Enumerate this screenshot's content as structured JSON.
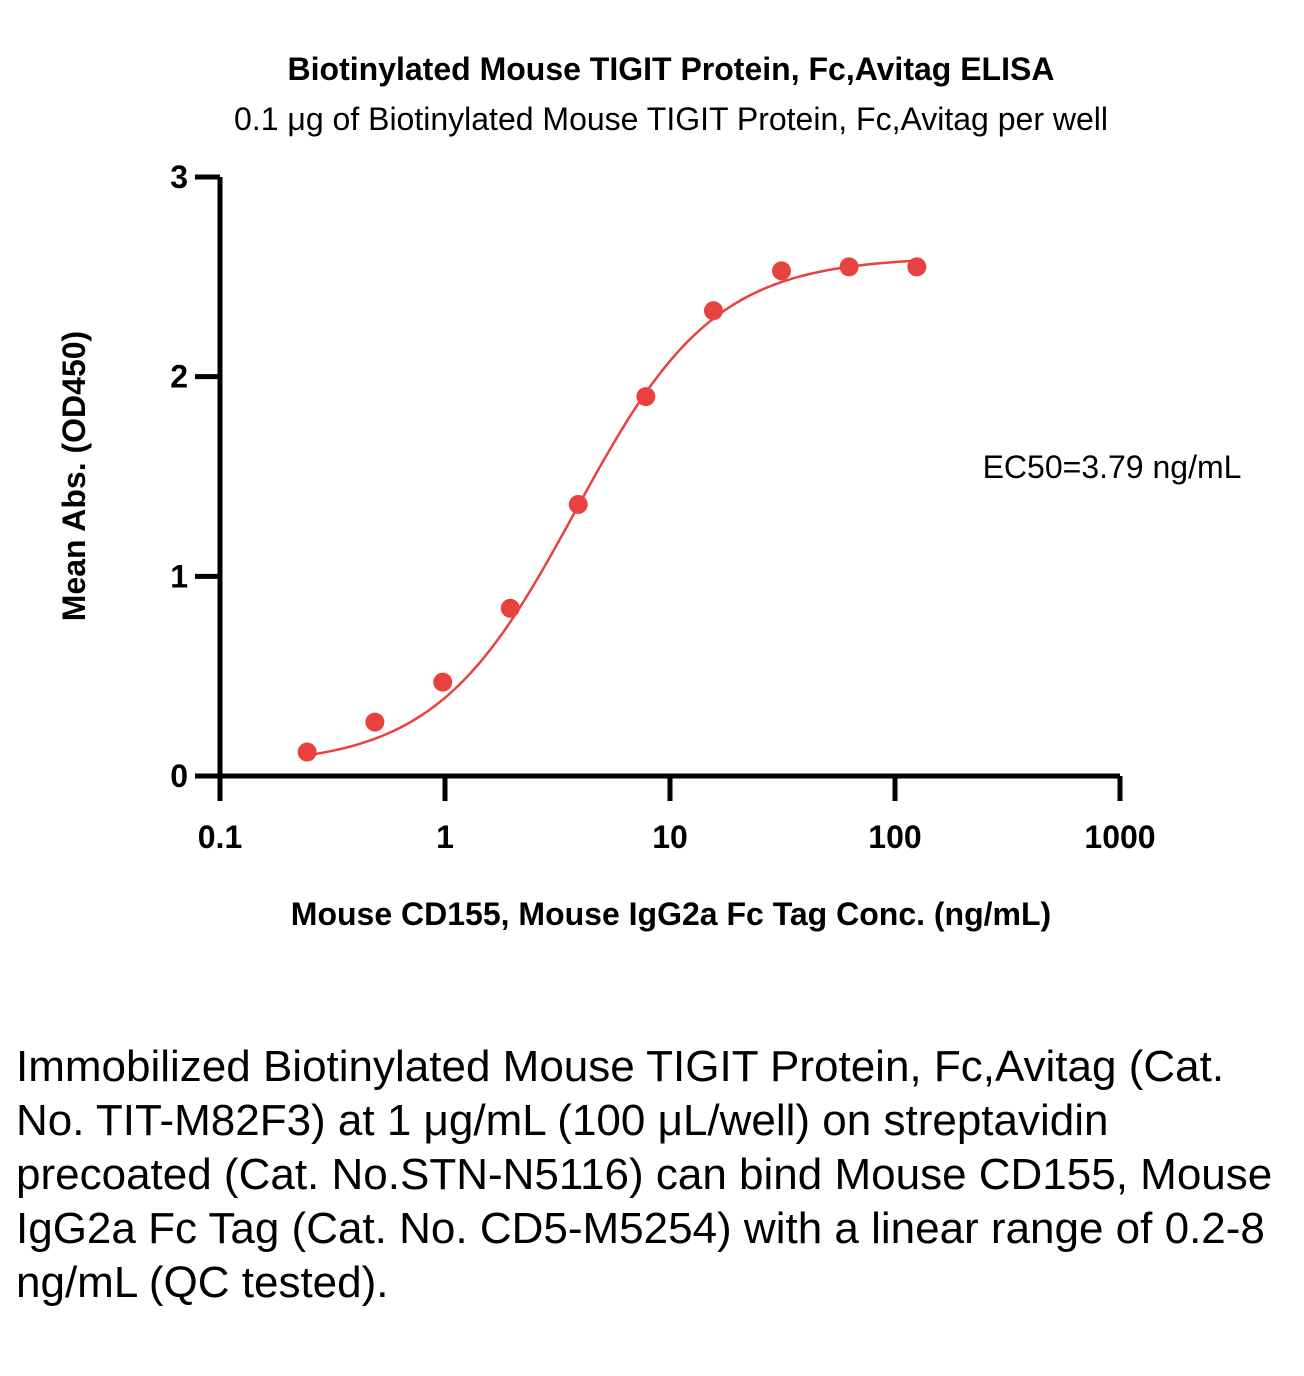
{
  "chart_data": {
    "type": "scatter",
    "title": "Biotinylated Mouse TIGIT Protein, Fc,Avitag ELISA",
    "subtitle": "0.1 μg of Biotinylated Mouse TIGIT Protein, Fc,Avitag per well",
    "xlabel": "Mouse CD155, Mouse IgG2a Fc Tag Conc. (ng/mL)",
    "ylabel": "Mean Abs. (OD450)",
    "x_scale": "log",
    "xlim": [
      0.1,
      1000
    ],
    "ylim": [
      0,
      3
    ],
    "x_ticks": [
      "0.1",
      "1",
      "10",
      "100",
      "1000"
    ],
    "x_tick_values": [
      0.1,
      1,
      10,
      100,
      1000
    ],
    "y_ticks": [
      "0",
      "1",
      "2",
      "3"
    ],
    "y_tick_values": [
      0,
      1,
      2,
      3
    ],
    "series": [
      {
        "name": "Mouse CD155, Mouse IgG2a Fc Tag",
        "color": "#e8423f",
        "x": [
          0.244,
          0.488,
          0.977,
          1.95,
          3.91,
          7.81,
          15.6,
          31.3,
          62.5,
          125
        ],
        "values": [
          0.12,
          0.27,
          0.47,
          0.84,
          1.36,
          1.9,
          2.33,
          2.53,
          2.55,
          2.55
        ]
      }
    ],
    "fit": {
      "model": "4PL",
      "bottom": 0.05,
      "top": 2.6,
      "ec50": 3.79,
      "hill": 1.4,
      "x_range": [
        0.244,
        125
      ]
    },
    "annotation": "EC50=3.79 ng/mL"
  },
  "caption": "Immobilized Biotinylated Mouse TIGIT Protein, Fc,Avitag (Cat. No. TIT-M82F3) at 1 μg/mL (100 μL/well) on streptavidin precoated (Cat. No.STN-N5116) can bind Mouse CD155, Mouse IgG2a Fc Tag (Cat. No. CD5-M5254) with a linear range of 0.2-8 ng/mL (QC tested)."
}
